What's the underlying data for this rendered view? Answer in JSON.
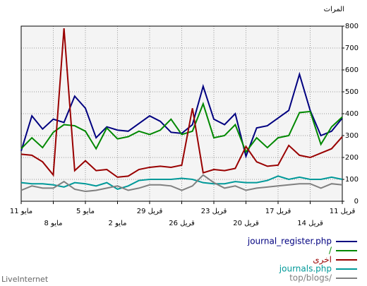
{
  "chart_data": {
    "type": "line",
    "y_axis_label": "المرات",
    "footer": "LiveInternet",
    "categories": [
      "11 مايو",
      null,
      null,
      "8 مايو",
      null,
      null,
      "5 مايو",
      null,
      null,
      "2 مايو",
      null,
      null,
      "29 قريل",
      null,
      null,
      "26 قريل",
      null,
      null,
      "23 قريل",
      null,
      null,
      "20 قريل",
      null,
      null,
      "17 قريل",
      null,
      null,
      "14 قريل",
      null,
      null,
      "11 قريل"
    ],
    "ylim": [
      0,
      800
    ],
    "yticks": [
      0,
      100,
      200,
      300,
      400,
      500,
      600,
      700,
      800
    ],
    "grid": true,
    "series": [
      {
        "name": "journal_register.php",
        "color": "#000080",
        "values": [
          230,
          390,
          330,
          375,
          360,
          480,
          425,
          290,
          340,
          325,
          320,
          355,
          390,
          365,
          315,
          310,
          350,
          525,
          375,
          350,
          400,
          205,
          335,
          345,
          380,
          415,
          580,
          415,
          300,
          320,
          380
        ]
      },
      {
        "name": "/",
        "color": "#008800",
        "values": [
          240,
          290,
          245,
          315,
          350,
          345,
          320,
          240,
          335,
          285,
          295,
          320,
          305,
          325,
          375,
          305,
          320,
          445,
          290,
          300,
          350,
          225,
          290,
          245,
          290,
          300,
          405,
          410,
          260,
          340,
          385
        ]
      },
      {
        "name": "اخرى",
        "color": "#990000",
        "values": [
          215,
          210,
          180,
          120,
          790,
          140,
          185,
          140,
          145,
          110,
          115,
          145,
          155,
          160,
          155,
          165,
          425,
          130,
          145,
          140,
          150,
          250,
          180,
          160,
          165,
          255,
          210,
          200,
          220,
          240,
          295
        ]
      },
      {
        "name": "journals.php",
        "color": "#009999",
        "values": [
          85,
          80,
          80,
          75,
          65,
          85,
          80,
          70,
          85,
          55,
          70,
          95,
          100,
          100,
          100,
          105,
          100,
          85,
          80,
          80,
          90,
          85,
          85,
          95,
          115,
          100,
          110,
          100,
          100,
          110,
          100
        ]
      },
      {
        "name": "top/blogs/",
        "color": "#808080",
        "values": [
          50,
          70,
          60,
          60,
          90,
          55,
          45,
          50,
          60,
          70,
          50,
          60,
          75,
          75,
          70,
          50,
          70,
          120,
          85,
          60,
          70,
          50,
          60,
          65,
          70,
          75,
          80,
          80,
          60,
          80,
          75
        ]
      }
    ]
  }
}
